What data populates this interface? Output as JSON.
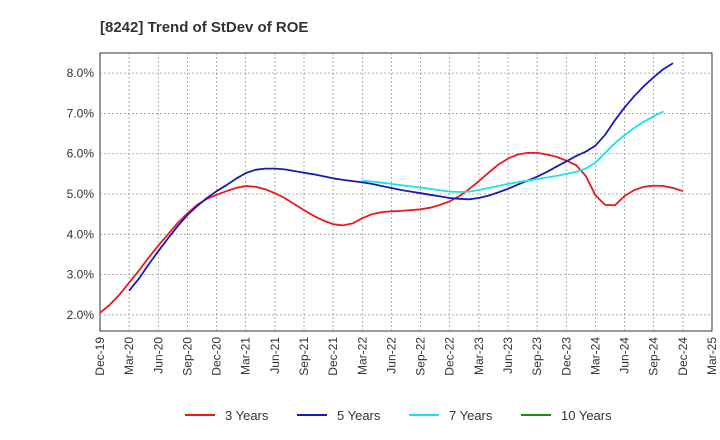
{
  "chart_data": {
    "type": "line",
    "title": "[8242]  Trend of StDev of ROE",
    "xlabel": "",
    "ylabel": "",
    "x_ticks": [
      "Dec-19",
      "Mar-20",
      "Jun-20",
      "Sep-20",
      "Dec-20",
      "Mar-21",
      "Jun-21",
      "Sep-21",
      "Dec-21",
      "Mar-22",
      "Jun-22",
      "Sep-22",
      "Dec-22",
      "Mar-23",
      "Jun-23",
      "Sep-23",
      "Dec-23",
      "Mar-24",
      "Jun-24",
      "Sep-24",
      "Dec-24",
      "Mar-25"
    ],
    "y_ticks": [
      "2.0%",
      "3.0%",
      "4.0%",
      "5.0%",
      "6.0%",
      "7.0%",
      "8.0%"
    ],
    "ylim": [
      1.6,
      8.5
    ],
    "grid": true,
    "legend_position": "bottom",
    "series": [
      {
        "name": "3 Years",
        "color": "#e8191c",
        "values": [
          [
            0,
            2.05
          ],
          [
            1,
            2.25
          ],
          [
            2,
            2.5
          ],
          [
            3,
            2.8
          ],
          [
            4,
            3.1
          ],
          [
            5,
            3.42
          ],
          [
            6,
            3.72
          ],
          [
            7,
            4.0
          ],
          [
            8,
            4.28
          ],
          [
            9,
            4.52
          ],
          [
            10,
            4.73
          ],
          [
            11,
            4.88
          ],
          [
            12,
            4.98
          ],
          [
            13,
            5.07
          ],
          [
            14,
            5.15
          ],
          [
            15,
            5.2
          ],
          [
            16,
            5.18
          ],
          [
            17,
            5.12
          ],
          [
            18,
            5.02
          ],
          [
            19,
            4.9
          ],
          [
            20,
            4.75
          ],
          [
            21,
            4.6
          ],
          [
            22,
            4.46
          ],
          [
            23,
            4.34
          ],
          [
            24,
            4.25
          ],
          [
            25,
            4.22
          ],
          [
            26,
            4.27
          ],
          [
            27,
            4.4
          ],
          [
            28,
            4.5
          ],
          [
            29,
            4.55
          ],
          [
            30,
            4.57
          ],
          [
            31,
            4.58
          ],
          [
            32,
            4.6
          ],
          [
            33,
            4.62
          ],
          [
            34,
            4.66
          ],
          [
            35,
            4.73
          ],
          [
            36,
            4.82
          ],
          [
            37,
            4.95
          ],
          [
            38,
            5.12
          ],
          [
            39,
            5.32
          ],
          [
            40,
            5.53
          ],
          [
            41,
            5.73
          ],
          [
            42,
            5.88
          ],
          [
            43,
            5.98
          ],
          [
            44,
            6.02
          ],
          [
            45,
            6.02
          ],
          [
            46,
            5.98
          ],
          [
            47,
            5.92
          ],
          [
            48,
            5.83
          ],
          [
            49,
            5.72
          ],
          [
            50,
            5.45
          ],
          [
            51,
            4.97
          ],
          [
            52,
            4.73
          ],
          [
            53,
            4.72
          ],
          [
            54,
            4.95
          ],
          [
            55,
            5.1
          ],
          [
            56,
            5.18
          ],
          [
            57,
            5.21
          ],
          [
            58,
            5.2
          ],
          [
            59,
            5.15
          ],
          [
            60,
            5.07
          ]
        ]
      },
      {
        "name": "5 Years",
        "color": "#1a1ab8",
        "values": [
          [
            3,
            2.6
          ],
          [
            4,
            2.9
          ],
          [
            5,
            3.25
          ],
          [
            6,
            3.58
          ],
          [
            7,
            3.9
          ],
          [
            8,
            4.2
          ],
          [
            9,
            4.48
          ],
          [
            10,
            4.7
          ],
          [
            11,
            4.9
          ],
          [
            12,
            5.07
          ],
          [
            13,
            5.22
          ],
          [
            14,
            5.38
          ],
          [
            15,
            5.52
          ],
          [
            16,
            5.6
          ],
          [
            17,
            5.63
          ],
          [
            18,
            5.63
          ],
          [
            19,
            5.61
          ],
          [
            20,
            5.57
          ],
          [
            21,
            5.53
          ],
          [
            22,
            5.49
          ],
          [
            23,
            5.44
          ],
          [
            24,
            5.39
          ],
          [
            25,
            5.35
          ],
          [
            26,
            5.32
          ],
          [
            27,
            5.29
          ],
          [
            28,
            5.25
          ],
          [
            29,
            5.2
          ],
          [
            30,
            5.15
          ],
          [
            31,
            5.1
          ],
          [
            32,
            5.06
          ],
          [
            33,
            5.02
          ],
          [
            34,
            4.98
          ],
          [
            35,
            4.94
          ],
          [
            36,
            4.9
          ],
          [
            37,
            4.88
          ],
          [
            38,
            4.87
          ],
          [
            39,
            4.9
          ],
          [
            40,
            4.96
          ],
          [
            41,
            5.04
          ],
          [
            42,
            5.13
          ],
          [
            43,
            5.23
          ],
          [
            44,
            5.33
          ],
          [
            45,
            5.43
          ],
          [
            46,
            5.55
          ],
          [
            47,
            5.68
          ],
          [
            48,
            5.81
          ],
          [
            49,
            5.94
          ],
          [
            50,
            6.05
          ],
          [
            51,
            6.2
          ],
          [
            52,
            6.47
          ],
          [
            53,
            6.83
          ],
          [
            54,
            7.15
          ],
          [
            55,
            7.43
          ],
          [
            56,
            7.68
          ],
          [
            57,
            7.9
          ],
          [
            58,
            8.1
          ],
          [
            59,
            8.25
          ]
        ]
      },
      {
        "name": "7 Years",
        "color": "#19e3e3",
        "values": [
          [
            27,
            5.33
          ],
          [
            28,
            5.31
          ],
          [
            29,
            5.28
          ],
          [
            30,
            5.25
          ],
          [
            31,
            5.22
          ],
          [
            32,
            5.19
          ],
          [
            33,
            5.16
          ],
          [
            34,
            5.13
          ],
          [
            35,
            5.09
          ],
          [
            36,
            5.06
          ],
          [
            37,
            5.05
          ],
          [
            38,
            5.06
          ],
          [
            39,
            5.1
          ],
          [
            40,
            5.15
          ],
          [
            41,
            5.2
          ],
          [
            42,
            5.25
          ],
          [
            43,
            5.29
          ],
          [
            44,
            5.33
          ],
          [
            45,
            5.37
          ],
          [
            46,
            5.41
          ],
          [
            47,
            5.45
          ],
          [
            48,
            5.5
          ],
          [
            49,
            5.55
          ],
          [
            50,
            5.63
          ],
          [
            51,
            5.78
          ],
          [
            52,
            6.02
          ],
          [
            53,
            6.26
          ],
          [
            54,
            6.46
          ],
          [
            55,
            6.64
          ],
          [
            56,
            6.8
          ],
          [
            57,
            6.93
          ],
          [
            58,
            7.05
          ]
        ]
      },
      {
        "name": "10 Years",
        "color": "#1a8c1a",
        "values": []
      }
    ]
  }
}
